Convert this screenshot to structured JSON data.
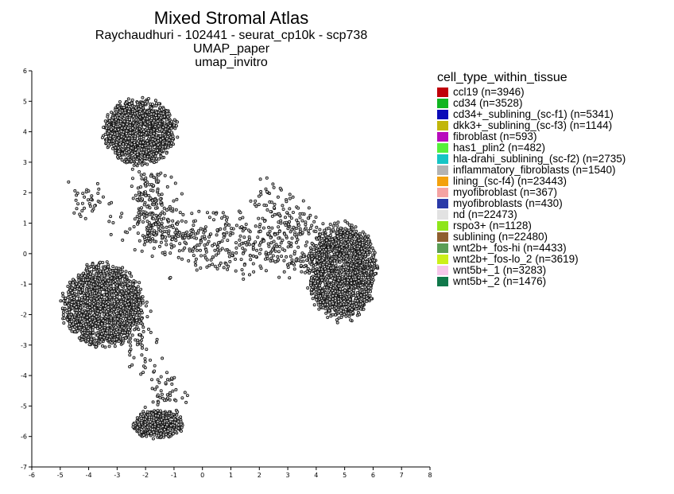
{
  "header": {
    "title": "Mixed Stromal Atlas",
    "subtitle_1": "Raychaudhuri - 102441 - seurat_cp10k - scp738",
    "subtitle_2": "UMAP_paper",
    "subtitle_3": "umap_invitro"
  },
  "chart_data": {
    "type": "scatter",
    "title": "Mixed Stromal Atlas",
    "xlim": [
      -6,
      8
    ],
    "ylim": [
      -7,
      6
    ],
    "x_ticks": [
      -6,
      -5,
      -4,
      -3,
      -2,
      -1,
      0,
      1,
      2,
      3,
      4,
      5,
      6,
      7,
      8
    ],
    "y_ticks": [
      -7,
      -6,
      -5,
      -4,
      -3,
      -2,
      -1,
      0,
      1,
      2,
      3,
      4,
      5,
      6
    ],
    "grid": false,
    "point_fill": "#c8c8c8",
    "point_stroke": "#111111",
    "legend_placement": "right",
    "legend_title": "cell_type_within_tissue",
    "clusters": [
      {
        "region": "top",
        "center": [
          -2.2,
          4.0
        ],
        "spread": [
          1.25,
          1.05
        ]
      },
      {
        "region": "left",
        "center": [
          -3.5,
          -1.7
        ],
        "spread": [
          1.4,
          1.35
        ]
      },
      {
        "region": "right",
        "center": [
          4.9,
          -0.6
        ],
        "spread": [
          1.2,
          1.55
        ]
      },
      {
        "region": "bottom",
        "center": [
          -1.6,
          -5.6
        ],
        "spread": [
          0.9,
          0.45
        ]
      }
    ],
    "series": [
      {
        "label": "ccl19 (n=3946)",
        "color": "#c0000a"
      },
      {
        "label": "cd34 (n=3528)",
        "color": "#10b521"
      },
      {
        "label": "cd34+_sublining_(sc-f1) (n=5341)",
        "color": "#0b0bb8"
      },
      {
        "label": "dkk3+_sublining_(sc-f3) (n=1144)",
        "color": "#c1b60b"
      },
      {
        "label": "fibroblast (n=593)",
        "color": "#b80cbd"
      },
      {
        "label": "has1_plin2 (n=482)",
        "color": "#55f03b"
      },
      {
        "label": "hla-drahi_sublining_(sc-f2) (n=2735)",
        "color": "#16c5c5"
      },
      {
        "label": "inflammatory_fibroblasts (n=1540)",
        "color": "#b3b3b3"
      },
      {
        "label": "lining_(sc-f4) (n=23443)",
        "color": "#f3a10d"
      },
      {
        "label": "myofibroblast (n=367)",
        "color": "#f5a3a3"
      },
      {
        "label": "myofibroblasts (n=430)",
        "color": "#2a3aa8"
      },
      {
        "label": "nd (n=22473)",
        "color": "#e2e2e2"
      },
      {
        "label": "rspo3+ (n=1128)",
        "color": "#8ee51a"
      },
      {
        "label": "sublining (n=22480)",
        "color": "#8f5f2f"
      },
      {
        "label": "wnt2b+_fos-hi (n=4433)",
        "color": "#5b9e55"
      },
      {
        "label": "wnt2b+_fos-lo_2 (n=3619)",
        "color": "#ccf01a"
      },
      {
        "label": "wnt5b+_1 (n=3283)",
        "color": "#f6c6ea"
      },
      {
        "label": "wnt5b+_2 (n=1476)",
        "color": "#10784a"
      }
    ]
  }
}
